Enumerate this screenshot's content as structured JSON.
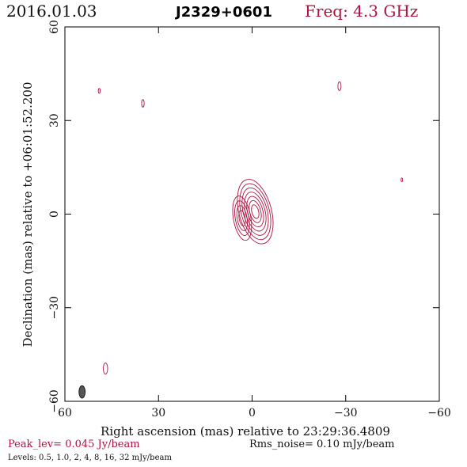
{
  "header": {
    "date": "2016.01.03",
    "source": "J2329+0601",
    "frequency": "Freq: 4.3 GHz"
  },
  "footer": {
    "peak": "Peak_lev=  0.045 Jy/beam",
    "rms": "Rms_noise= 0.10 mJy/beam",
    "levels": "Levels: 0.5, 1.0,    2,    4,    8,   16,   32 mJy/beam"
  },
  "colors": {
    "contour": "#b0123f",
    "beam": "#555555",
    "axes": "#000000"
  },
  "chart_data": {
    "type": "contour",
    "xlabel": "Right ascension (mas) relative to 23:29:36.4809",
    "ylabel": "Declination (mas) relative to +06:01:52.200",
    "xlim": [
      60,
      -60
    ],
    "ylim": [
      -60,
      60
    ],
    "xticks": [
      60,
      30,
      0,
      -30,
      -60
    ],
    "yticks": [
      60,
      30,
      0,
      -30,
      -60
    ],
    "xtick_labels": [
      "60",
      "30",
      "0",
      "−30",
      "−60"
    ],
    "ytick_labels": [
      "60",
      "30",
      "0",
      "−30",
      "−60"
    ],
    "contour_levels_mJy": [
      0.5,
      1.0,
      2,
      4,
      8,
      16,
      32
    ],
    "core": {
      "x": 0.0,
      "y": 0.0
    },
    "blobs": [
      {
        "x": -1.0,
        "y": 0.8,
        "rx": 5.2,
        "ry": 10.6,
        "angle": -15,
        "levels": 7
      },
      {
        "x": 3.2,
        "y": -1.3,
        "rx": 2.8,
        "ry": 7.2,
        "angle": -10,
        "levels": 4
      }
    ],
    "noise_features": [
      {
        "x": 49,
        "y": 39.5,
        "rx": 0.3,
        "ry": 0.8
      },
      {
        "x": 35,
        "y": 35.5,
        "rx": 0.4,
        "ry": 1.2
      },
      {
        "x": -28,
        "y": 41,
        "rx": 0.5,
        "ry": 1.4
      },
      {
        "x": -48,
        "y": 11,
        "rx": 0.25,
        "ry": 0.6
      },
      {
        "x": 47,
        "y": -49.5,
        "rx": 0.7,
        "ry": 1.8
      }
    ],
    "beam": {
      "x": 54.5,
      "y": -57,
      "rx": 1.0,
      "ry": 2.0
    }
  }
}
